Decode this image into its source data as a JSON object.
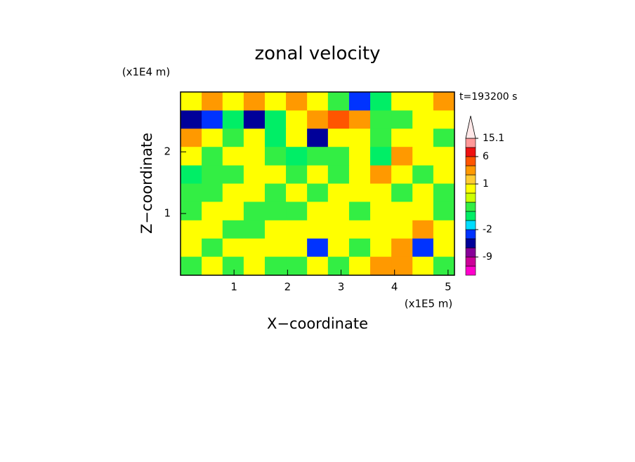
{
  "chart_data": {
    "type": "contour",
    "title": "zonal velocity",
    "x_label": "X−coordinate",
    "y_label": "Z−coordinate",
    "x_unit": "(x1E5 m)",
    "y_unit": "(x1E4 m)",
    "time_label": "t=193200 s",
    "xlim": [
      0,
      5.12
    ],
    "ylim": [
      0,
      2.97
    ],
    "xticks": [
      1,
      2,
      3,
      4,
      5
    ],
    "yticks": [
      1,
      2
    ],
    "x": [
      0.2,
      0.59,
      0.98,
      1.38,
      1.77,
      2.17,
      2.56,
      2.95,
      3.35,
      3.74,
      4.14,
      4.53,
      4.92
    ],
    "y": [
      2.82,
      2.52,
      2.23,
      1.93,
      1.63,
      1.34,
      1.04,
      0.74,
      0.45,
      0.15
    ],
    "z": [
      [
        0.7,
        2,
        0.7,
        3,
        0.7,
        2,
        0.7,
        -0.2,
        -3,
        -1,
        0.7,
        0.7,
        2
      ],
      [
        -4,
        -3,
        -1,
        -4,
        -1,
        0.7,
        3,
        4,
        3,
        -0.2,
        -0.2,
        0.7,
        0.7
      ],
      [
        3,
        0.7,
        -0.2,
        0.7,
        -1,
        0.7,
        -4,
        0.7,
        0.7,
        -0.2,
        0.7,
        0.7,
        -0.2
      ],
      [
        0.7,
        -0.2,
        0.7,
        0.7,
        -0.2,
        -1,
        -0.2,
        -0.2,
        0.7,
        -1,
        3,
        0.7,
        0.7
      ],
      [
        -1,
        -0.2,
        -0.2,
        0.7,
        0.7,
        -0.2,
        0.7,
        -0.2,
        0.7,
        3,
        0.7,
        -0.2,
        0.7
      ],
      [
        -0.2,
        -0.2,
        0.7,
        0.7,
        -0.2,
        0.7,
        -0.2,
        0.7,
        0.7,
        0.7,
        -0.2,
        0.7,
        -0.2
      ],
      [
        -0.2,
        0.7,
        0.7,
        -0.2,
        -0.2,
        -0.2,
        0.7,
        0.7,
        -0.2,
        0.7,
        0.7,
        0.7,
        -0.2
      ],
      [
        0.7,
        0.7,
        -0.2,
        -0.2,
        0.7,
        0.7,
        0.7,
        0.7,
        0.7,
        0.7,
        0.7,
        3,
        0.7
      ],
      [
        0.7,
        -0.2,
        0.7,
        0.7,
        0.7,
        0.7,
        -3,
        0.7,
        -0.2,
        0.7,
        3,
        -3,
        0.7
      ],
      [
        -0.2,
        0.7,
        -0.2,
        0.7,
        -0.2,
        -0.2,
        0.7,
        -0.2,
        0.7,
        2,
        3,
        0.7,
        -0.2
      ]
    ],
    "levels": [
      -15,
      -12,
      -9,
      -6,
      -3,
      -2,
      -1,
      -0.5,
      0,
      0.5,
      1,
      2,
      4,
      6,
      10,
      15.1
    ],
    "colors": [
      "#ff00cc",
      "#cc0099",
      "#880099",
      "#000099",
      "#0033ff",
      "#00ddff",
      "#00ee66",
      "#33ee44",
      "#ccff00",
      "#ffff00",
      "#ffcc33",
      "#ff9900",
      "#ff5500",
      "#ee1111",
      "#ff9999"
    ],
    "extend_color": "#ffe8e8",
    "colorbar_ticks": [
      15.1,
      6,
      1,
      -2,
      -9
    ]
  }
}
